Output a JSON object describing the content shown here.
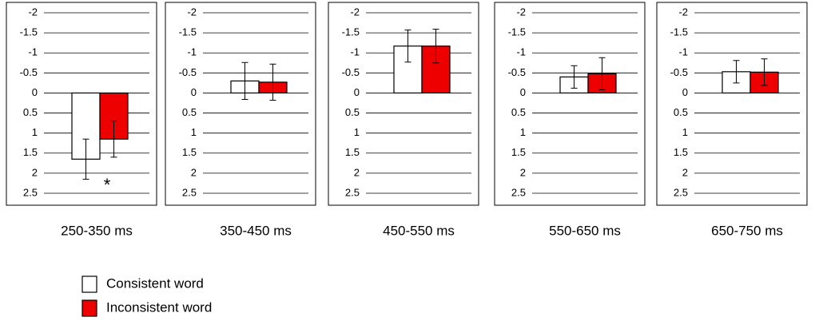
{
  "chart_data": [
    {
      "type": "bar",
      "title": "250-350 ms",
      "annotation": "*",
      "y_inverted": true,
      "grid": true,
      "ylim": [
        -2,
        2.5
      ],
      "yticks": [
        -2,
        -1.5,
        -1,
        -0.5,
        0,
        0.5,
        1,
        1.5,
        2,
        2.5
      ],
      "series": [
        {
          "name": "Consistent word",
          "color": "#ffffff",
          "values": [
            1.65
          ],
          "errors": [
            0.5
          ]
        },
        {
          "name": "Inconsistent word",
          "color": "#ee0000",
          "values": [
            1.15
          ],
          "errors": [
            0.45
          ]
        }
      ]
    },
    {
      "type": "bar",
      "title": "350-450 ms",
      "y_inverted": true,
      "grid": true,
      "ylim": [
        -2,
        2.5
      ],
      "yticks": [
        -2,
        -1.5,
        -1,
        -0.5,
        0,
        0.5,
        1,
        1.5,
        2,
        2.5
      ],
      "series": [
        {
          "name": "Consistent word",
          "color": "#ffffff",
          "values": [
            -0.3
          ],
          "errors": [
            0.46
          ]
        },
        {
          "name": "Inconsistent word",
          "color": "#ee0000",
          "values": [
            -0.27
          ],
          "errors": [
            0.45
          ]
        }
      ]
    },
    {
      "type": "bar",
      "title": "450-550 ms",
      "y_inverted": true,
      "grid": true,
      "ylim": [
        -2,
        2.5
      ],
      "yticks": [
        -2,
        -1.5,
        -1,
        -0.5,
        0,
        0.5,
        1,
        1.5,
        2,
        2.5
      ],
      "series": [
        {
          "name": "Consistent word",
          "color": "#ffffff",
          "values": [
            -1.17
          ],
          "errors": [
            0.4
          ]
        },
        {
          "name": "Inconsistent word",
          "color": "#ee0000",
          "values": [
            -1.17
          ],
          "errors": [
            0.42
          ]
        }
      ]
    },
    {
      "type": "bar",
      "title": "550-650 ms",
      "y_inverted": true,
      "grid": true,
      "ylim": [
        -2,
        2.5
      ],
      "yticks": [
        -2,
        -1.5,
        -1,
        -0.5,
        0,
        0.5,
        1,
        1.5,
        2,
        2.5
      ],
      "series": [
        {
          "name": "Consistent word",
          "color": "#ffffff",
          "values": [
            -0.4
          ],
          "errors": [
            0.28
          ]
        },
        {
          "name": "Inconsistent word",
          "color": "#ee0000",
          "values": [
            -0.48
          ],
          "errors": [
            0.4
          ]
        }
      ]
    },
    {
      "type": "bar",
      "title": "650-750 ms",
      "y_inverted": true,
      "grid": true,
      "ylim": [
        -2,
        2.5
      ],
      "yticks": [
        -2,
        -1.5,
        -1,
        -0.5,
        0,
        0.5,
        1,
        1.5,
        2,
        2.5
      ],
      "series": [
        {
          "name": "Consistent word",
          "color": "#ffffff",
          "values": [
            -0.53
          ],
          "errors": [
            0.28
          ]
        },
        {
          "name": "Inconsistent word",
          "color": "#ee0000",
          "values": [
            -0.52
          ],
          "errors": [
            0.33
          ]
        }
      ]
    }
  ]
}
